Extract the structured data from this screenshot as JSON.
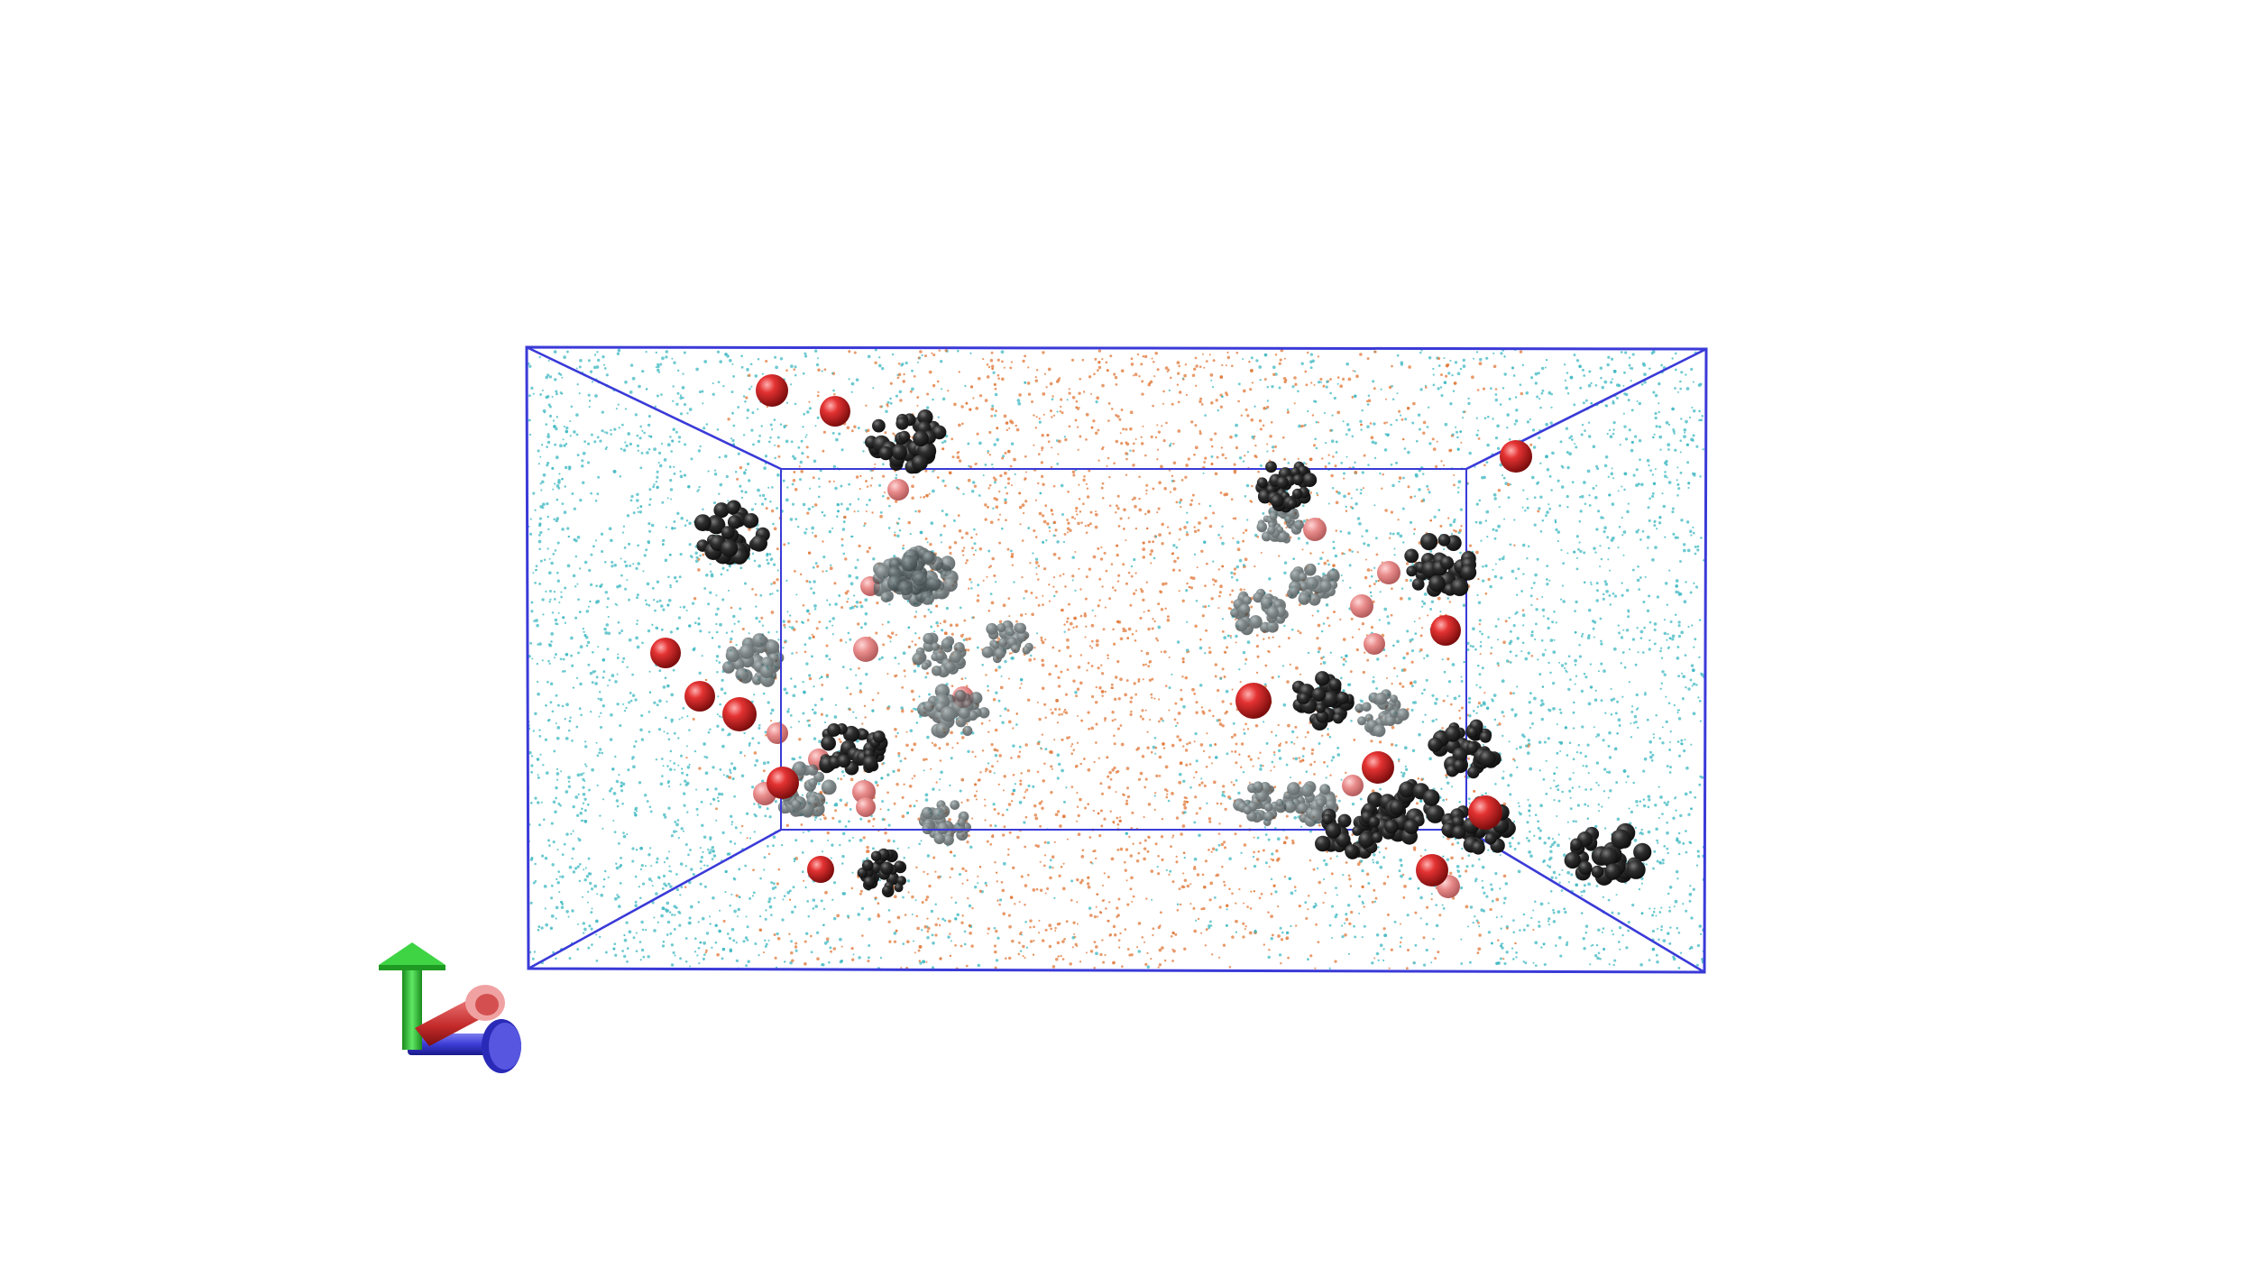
{
  "scene": {
    "kind": "molecular-dynamics-render",
    "background_color": "#ffffff",
    "box_color": "#3a3ad8",
    "colors": {
      "solvent_a": "#3fb8c2",
      "solvent_b": "#e0783a",
      "ions": "#c81e1e",
      "molecules": "#1c1c1c"
    },
    "axes_colors": {
      "y": "#22c228",
      "x": "#d03232",
      "z": "#3434c8"
    }
  }
}
